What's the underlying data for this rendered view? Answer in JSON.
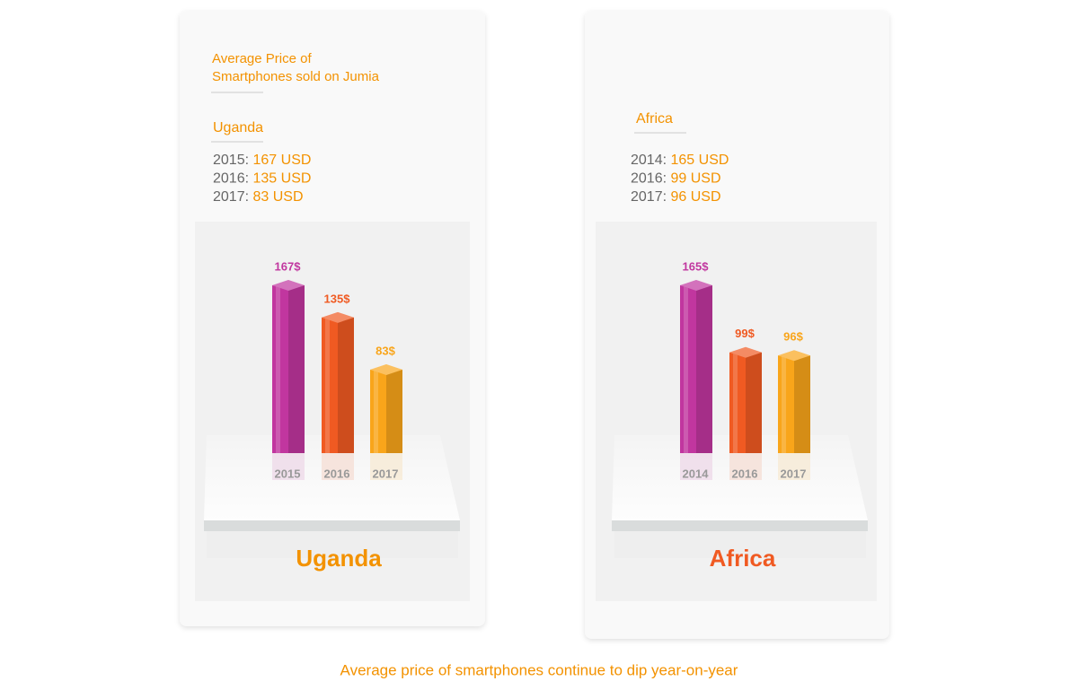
{
  "caption": "Average price of smartphones continue to dip year-on-year",
  "chart_data": [
    {
      "type": "bar3d",
      "title": [
        "Average Price of",
        "Smartphones sold on Jumia"
      ],
      "region": "Uganda",
      "note_years": [
        "2015:",
        "2016:",
        "2017:"
      ],
      "note_values": [
        "167 USD",
        "135 USD",
        "83 USD"
      ],
      "categories": [
        "2015",
        "2016",
        "2017"
      ],
      "values": [
        167,
        135,
        83
      ],
      "value_labels": [
        "167$",
        "135$",
        "83$"
      ],
      "colors": [
        "#c1369f",
        "#f05a22",
        "#f9a51a"
      ],
      "region_color": "#f39200"
    },
    {
      "type": "bar3d",
      "region": "Africa",
      "note_years": [
        "2014:",
        "2016:",
        "2017:"
      ],
      "note_values": [
        "165 USD",
        "99 USD",
        "96 USD"
      ],
      "categories": [
        "2014",
        "2016",
        "2017"
      ],
      "values": [
        165,
        99,
        96
      ],
      "value_labels": [
        "165$",
        "99$",
        "96$"
      ],
      "colors": [
        "#c1369f",
        "#f05a22",
        "#f9a51a"
      ],
      "region_color": "#f05a22"
    }
  ]
}
